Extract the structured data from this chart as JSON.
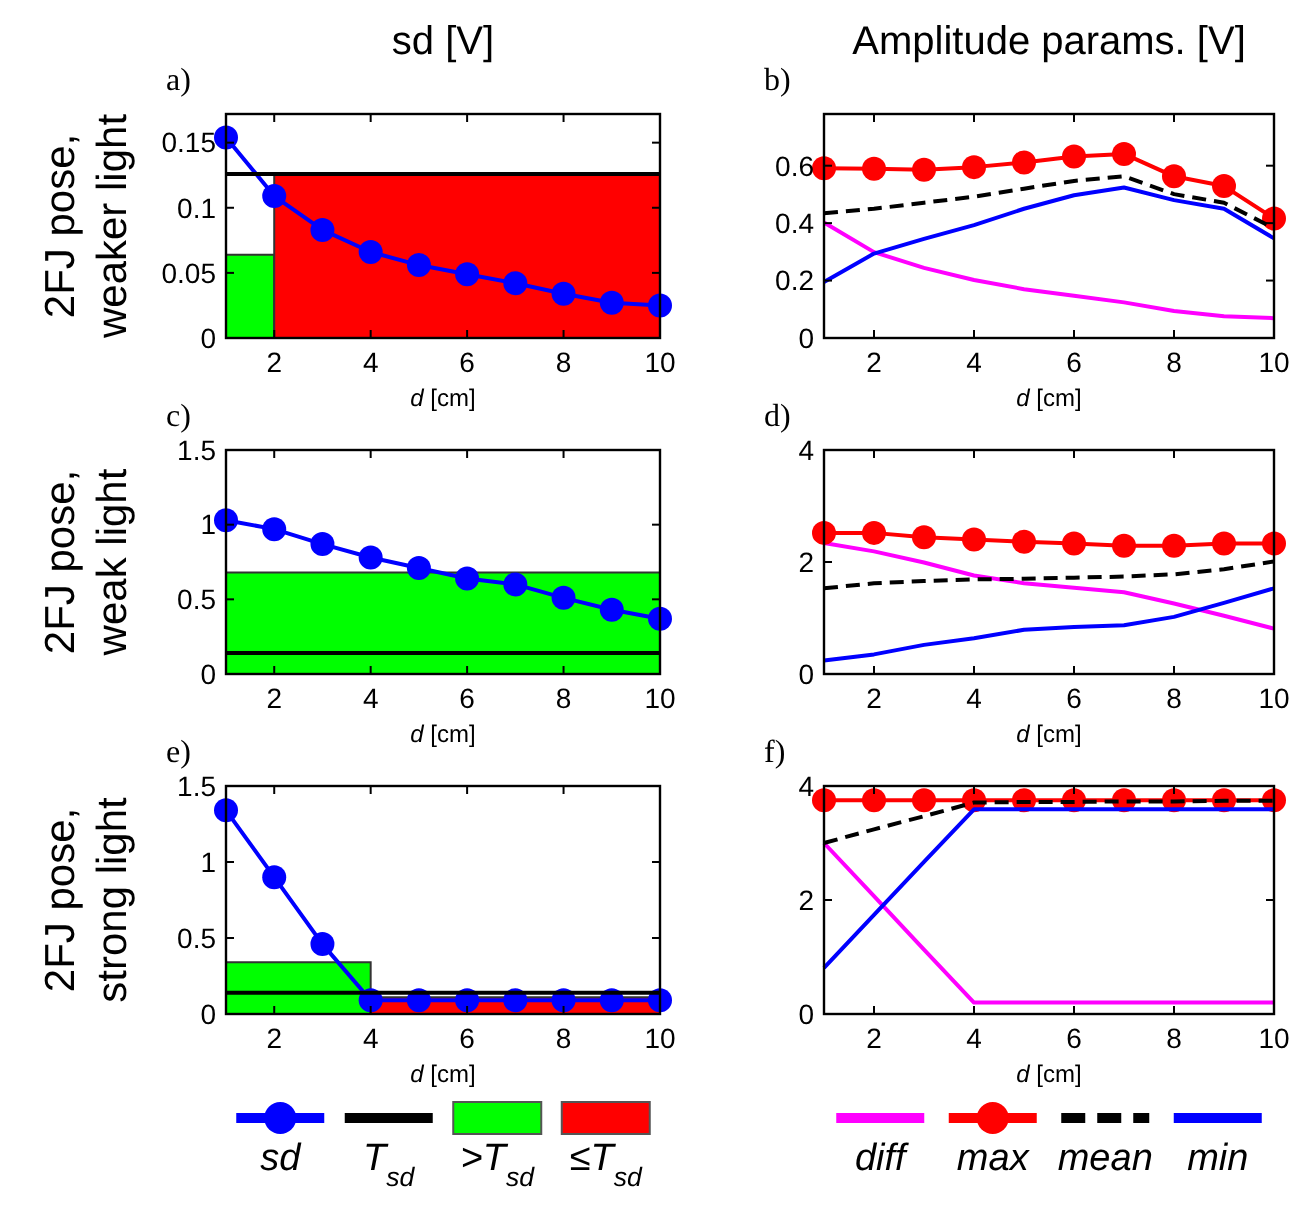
{
  "chart_data": [
    {
      "type": "line",
      "title": "sd [V]",
      "ylabel": "2FJ pose,\nweaker light",
      "xlabel": "d [cm]",
      "annotations": [
        "a)"
      ],
      "x": [
        1,
        2,
        3,
        4,
        5,
        6,
        7,
        8,
        9,
        10
      ],
      "xlim": [
        1,
        10
      ],
      "xticks": [
        2,
        4,
        6,
        8,
        10
      ],
      "ylim": [
        0,
        0.172
      ],
      "yticks": [
        0,
        0.05,
        0.1,
        0.15
      ],
      "series": [
        {
          "color": "#0000ff",
          "marker": "circle",
          "values": [
            0.154,
            0.109,
            0.083,
            0.066,
            0.056,
            0.049,
            0.042,
            0.034,
            0.027,
            0.025
          ]
        },
        {
          "color": "#000000",
          "x": [
            1,
            10
          ],
          "values": [
            0.126,
            0.126
          ]
        },
        {
          "type": "area",
          "color": "#00ff00",
          "x": [
            1,
            2
          ],
          "values": [
            0.064,
            0.064
          ]
        },
        {
          "type": "area",
          "color": "#ff0000",
          "x": [
            2,
            10
          ],
          "values": [
            0.126,
            0.126
          ]
        }
      ]
    },
    {
      "type": "line",
      "title": "Amplitude params. [V]",
      "xlabel": "d [cm]",
      "annotations": [
        "b)"
      ],
      "x": [
        1,
        2,
        3,
        4,
        5,
        6,
        7,
        8,
        9,
        10
      ],
      "xlim": [
        1,
        10
      ],
      "xticks": [
        2,
        4,
        6,
        8,
        10
      ],
      "ylim": [
        0,
        0.78
      ],
      "yticks": [
        0,
        0.2,
        0.4,
        0.6
      ],
      "series": [
        {
          "color": "#ff00ff",
          "values": [
            0.402,
            0.299,
            0.244,
            0.202,
            0.17,
            0.147,
            0.124,
            0.094,
            0.076,
            0.069
          ]
        },
        {
          "color": "#ff0000",
          "marker": "circle",
          "values": [
            0.591,
            0.589,
            0.586,
            0.595,
            0.611,
            0.632,
            0.641,
            0.563,
            0.529,
            0.416
          ]
        },
        {
          "color": "#000000",
          "line_style": "dashed",
          "values": [
            0.434,
            0.45,
            0.471,
            0.492,
            0.52,
            0.547,
            0.563,
            0.501,
            0.471,
            0.382
          ]
        },
        {
          "color": "#0000ff",
          "values": [
            0.195,
            0.294,
            0.345,
            0.393,
            0.45,
            0.497,
            0.524,
            0.48,
            0.45,
            0.347
          ]
        }
      ]
    },
    {
      "type": "line",
      "ylabel": "2FJ  pose,\nweak light",
      "xlabel": "d [cm]",
      "annotations": [
        "c)"
      ],
      "x": [
        1,
        2,
        3,
        4,
        5,
        6,
        7,
        8,
        9,
        10
      ],
      "xlim": [
        1,
        10
      ],
      "xticks": [
        2,
        4,
        6,
        8,
        10
      ],
      "ylim": [
        0,
        1.5
      ],
      "yticks": [
        0,
        0.5,
        1,
        1.5
      ],
      "series": [
        {
          "type": "area",
          "color": "#00ff00",
          "x": [
            1,
            10
          ],
          "values": [
            0.68,
            0.68
          ]
        },
        {
          "color": "#000000",
          "x": [
            1,
            10
          ],
          "values": [
            0.14,
            0.14
          ]
        },
        {
          "color": "#0000ff",
          "marker": "circle",
          "values": [
            1.03,
            0.97,
            0.87,
            0.78,
            0.71,
            0.64,
            0.6,
            0.51,
            0.43,
            0.37
          ]
        }
      ]
    },
    {
      "type": "line",
      "xlabel": "d [cm]",
      "annotations": [
        "d)"
      ],
      "x": [
        1,
        2,
        3,
        4,
        5,
        6,
        7,
        8,
        9,
        10
      ],
      "xlim": [
        1,
        10
      ],
      "xticks": [
        2,
        4,
        6,
        8,
        10
      ],
      "ylim": [
        0,
        4
      ],
      "yticks": [
        0,
        2,
        4
      ],
      "series": [
        {
          "color": "#ff00ff",
          "values": [
            2.34,
            2.19,
            1.99,
            1.76,
            1.62,
            1.54,
            1.46,
            1.26,
            1.04,
            0.81
          ]
        },
        {
          "color": "#ff0000",
          "marker": "circle",
          "values": [
            2.52,
            2.52,
            2.44,
            2.4,
            2.36,
            2.33,
            2.29,
            2.29,
            2.33,
            2.33
          ]
        },
        {
          "color": "#000000",
          "line_style": "dashed",
          "values": [
            1.53,
            1.62,
            1.66,
            1.69,
            1.7,
            1.72,
            1.74,
            1.78,
            1.87,
            2.01
          ]
        },
        {
          "color": "#0000ff",
          "values": [
            0.24,
            0.35,
            0.52,
            0.64,
            0.79,
            0.84,
            0.87,
            1.02,
            1.27,
            1.53
          ]
        }
      ]
    },
    {
      "type": "line",
      "ylabel": "2FJ pose,\nstrong light",
      "xlabel": "d [cm]",
      "annotations": [
        "e)"
      ],
      "x": [
        1,
        2,
        3,
        4,
        5,
        6,
        7,
        8,
        9,
        10
      ],
      "xlim": [
        1,
        10
      ],
      "xticks": [
        2,
        4,
        6,
        8,
        10
      ],
      "ylim": [
        0,
        1.5
      ],
      "yticks": [
        0,
        0.5,
        1,
        1.5
      ],
      "legend": "bottom",
      "series": [
        {
          "name": "sd",
          "color": "#0000ff",
          "marker": "circle",
          "values": [
            1.34,
            0.9,
            0.46,
            0.09,
            0.09,
            0.09,
            0.09,
            0.09,
            0.09,
            0.09
          ]
        },
        {
          "name": "T$_{sd}$",
          "color": "#000000",
          "x": [
            1,
            10
          ],
          "values": [
            0.14,
            0.14
          ]
        },
        {
          "name": ">T$_{sd}$",
          "type": "area",
          "color": "#00ff00",
          "x": [
            1,
            4
          ],
          "values": [
            0.34,
            0.34
          ]
        },
        {
          "name": "≤T$_{sd}$",
          "type": "area",
          "color": "#ff0000",
          "x": [
            4,
            10
          ],
          "values": [
            0.11,
            0.11
          ]
        }
      ]
    },
    {
      "type": "line",
      "xlabel": "d [cm]",
      "annotations": [
        "f)"
      ],
      "x": [
        1,
        2,
        3,
        4,
        5,
        6,
        7,
        8,
        9,
        10
      ],
      "xlim": [
        1,
        10
      ],
      "xticks": [
        2,
        4,
        6,
        8,
        10
      ],
      "ylim": [
        0,
        4
      ],
      "yticks": [
        0,
        2,
        4
      ],
      "legend": "bottom",
      "series": [
        {
          "name": "diff",
          "color": "#ff00ff",
          "values": [
            3.0,
            2.07,
            1.13,
            0.2,
            0.2,
            0.2,
            0.2,
            0.2,
            0.2,
            0.2
          ]
        },
        {
          "name": "max",
          "color": "#ff0000",
          "marker": "circle",
          "values": [
            3.75,
            3.75,
            3.75,
            3.75,
            3.75,
            3.75,
            3.75,
            3.75,
            3.75,
            3.75
          ]
        },
        {
          "name": "mean",
          "color": "#000000",
          "line_style": "dashed",
          "values": [
            3.0,
            3.24,
            3.47,
            3.71,
            3.72,
            3.72,
            3.73,
            3.73,
            3.74,
            3.74
          ]
        },
        {
          "name": "min",
          "color": "#0000ff",
          "values": [
            0.81,
            1.74,
            2.67,
            3.59,
            3.59,
            3.59,
            3.59,
            3.59,
            3.59,
            3.59
          ]
        }
      ]
    }
  ]
}
